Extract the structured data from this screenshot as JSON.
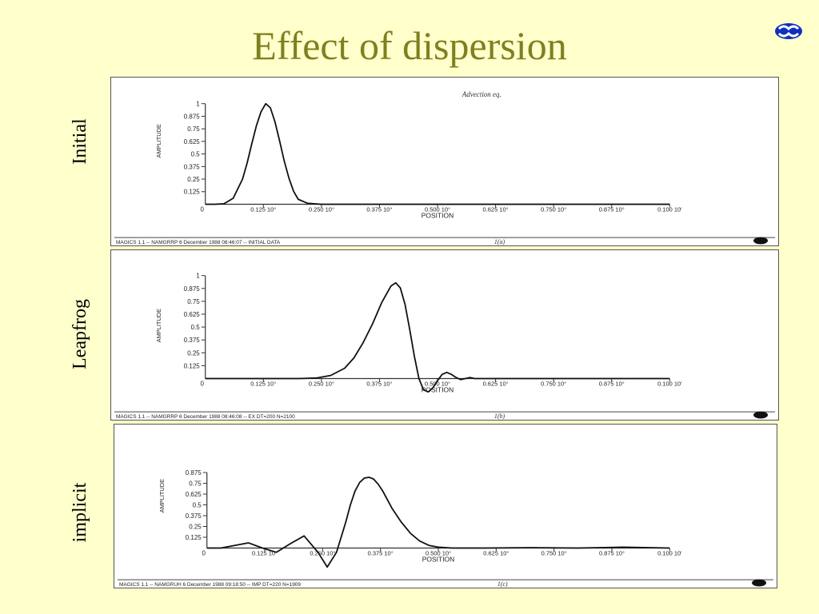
{
  "slide": {
    "title": "Effect of dispersion",
    "logo_icon": "ecmwf-logo-icon",
    "accent_color": "#7f7f1f",
    "background_color": "#ffffcc"
  },
  "chart_data": [
    {
      "type": "line",
      "side_label": "Initial",
      "annotation": "Advection eq.",
      "footer": "MAGICS 1.1 -- NAMGRRP 6 December 1988 08:46:07 -- INITIAL DATA",
      "figure_label": "1(a)",
      "xlabel": "POSITION",
      "ylabel": "AMPLITUDE",
      "xlim": [
        0,
        1
      ],
      "ylim": [
        0,
        1
      ],
      "x_tick_labels": [
        "0.125 10°",
        "0.250 10°",
        "0.375 10°",
        "0.500 10°",
        "0.625 10°",
        "0.750 10°",
        "0.875 10°",
        "0.100 10'"
      ],
      "x_ticks": [
        0.125,
        0.25,
        0.375,
        0.5,
        0.625,
        0.75,
        0.875,
        1.0
      ],
      "y_tick_labels": [
        "0.125",
        "0.25",
        "0.375",
        "0.5",
        "0.625",
        "0.75",
        "0.875",
        "1"
      ],
      "y_ticks": [
        0.125,
        0.25,
        0.375,
        0.5,
        0.625,
        0.75,
        0.875,
        1.0
      ],
      "origin_label": "0",
      "series": [
        {
          "x": [
            0,
            0.02,
            0.04,
            0.06,
            0.08,
            0.09,
            0.1,
            0.11,
            0.12,
            0.13,
            0.14,
            0.15,
            0.16,
            0.17,
            0.18,
            0.19,
            0.2,
            0.22,
            0.25,
            0.3,
            1.0
          ],
          "y": [
            0,
            0,
            0.005,
            0.06,
            0.25,
            0.41,
            0.6,
            0.78,
            0.92,
            1.0,
            0.96,
            0.82,
            0.63,
            0.43,
            0.26,
            0.13,
            0.05,
            0.01,
            0,
            0,
            0
          ]
        }
      ]
    },
    {
      "type": "line",
      "side_label": "Leapfrog",
      "footer": "MAGICS 1.1 -- NAMGRRP 6 December 1988 08:46:08 -- EX DT=200 N=2100",
      "figure_label": "1(b)",
      "xlabel": "POSITION",
      "ylabel": "AMPLITUDE",
      "xlim": [
        0,
        1
      ],
      "ylim": [
        -0.15,
        1
      ],
      "x_tick_labels": [
        "0.125 10°",
        "0.250 10°",
        "0.375 10°",
        "0.500 10°",
        "0.625 10°",
        "0.750 10°",
        "0.875 10°",
        "0.100 10'"
      ],
      "x_ticks": [
        0.125,
        0.25,
        0.375,
        0.5,
        0.625,
        0.75,
        0.875,
        1.0
      ],
      "y_tick_labels": [
        "0.125",
        "0.25",
        "0.375",
        "0.5",
        "0.625",
        "0.75",
        "0.875",
        "1"
      ],
      "y_ticks": [
        0.125,
        0.25,
        0.375,
        0.5,
        0.625,
        0.75,
        0.875,
        1.0
      ],
      "origin_label": "0",
      "series": [
        {
          "x": [
            0,
            0.2,
            0.24,
            0.27,
            0.3,
            0.32,
            0.34,
            0.36,
            0.38,
            0.4,
            0.41,
            0.42,
            0.43,
            0.44,
            0.45,
            0.46,
            0.47,
            0.48,
            0.49,
            0.5,
            0.51,
            0.52,
            0.53,
            0.54,
            0.55,
            0.56,
            0.57,
            0.58,
            0.6,
            1.0
          ],
          "y": [
            0,
            0,
            0.005,
            0.03,
            0.1,
            0.2,
            0.35,
            0.53,
            0.74,
            0.9,
            0.93,
            0.88,
            0.72,
            0.48,
            0.22,
            0.0,
            -0.11,
            -0.13,
            -0.09,
            -0.02,
            0.04,
            0.06,
            0.04,
            0.01,
            -0.01,
            0.0,
            0.01,
            0,
            0,
            0
          ]
        }
      ]
    },
    {
      "type": "line",
      "side_label": "implicit",
      "footer": "MAGICS 1.1 -- NAMGRUH 6 December 1988 09:18:50 -- IMP DT=220 N=1909",
      "figure_label": "1(c)",
      "xlabel": "POSITION",
      "ylabel": "AMPLITUDE",
      "xlim": [
        0,
        1
      ],
      "ylim": [
        -0.25,
        1
      ],
      "x_tick_labels": [
        "0.125 10°",
        "0.250 10°",
        "0.375 10°",
        "0.500 10°",
        "0.625 10°",
        "0.750 10°",
        "0.875 10°",
        "0.100 10'"
      ],
      "x_ticks": [
        0.125,
        0.25,
        0.375,
        0.5,
        0.625,
        0.75,
        0.875,
        1.0
      ],
      "y_tick_labels": [
        "0.125",
        "0.25",
        "0.375",
        "0.5",
        "0.625",
        "0.75",
        "0.875"
      ],
      "y_ticks": [
        0.125,
        0.25,
        0.375,
        0.5,
        0.625,
        0.75,
        0.875
      ],
      "origin_label": "0",
      "series": [
        {
          "x": [
            0,
            0.03,
            0.06,
            0.09,
            0.12,
            0.15,
            0.18,
            0.21,
            0.24,
            0.26,
            0.28,
            0.3,
            0.31,
            0.32,
            0.33,
            0.34,
            0.35,
            0.36,
            0.37,
            0.38,
            0.39,
            0.4,
            0.42,
            0.44,
            0.46,
            0.48,
            0.5,
            0.53,
            0.56,
            0.6,
            0.7,
            0.8,
            0.9,
            1.0
          ],
          "y": [
            0,
            0.0,
            0.03,
            0.06,
            0.0,
            -0.05,
            0.05,
            0.14,
            -0.05,
            -0.22,
            -0.05,
            0.3,
            0.5,
            0.66,
            0.76,
            0.81,
            0.82,
            0.8,
            0.74,
            0.66,
            0.56,
            0.46,
            0.3,
            0.17,
            0.08,
            0.03,
            0.01,
            0.0,
            0.0,
            0.0,
            0.005,
            0.0,
            0.01,
            0.0
          ]
        }
      ]
    }
  ]
}
